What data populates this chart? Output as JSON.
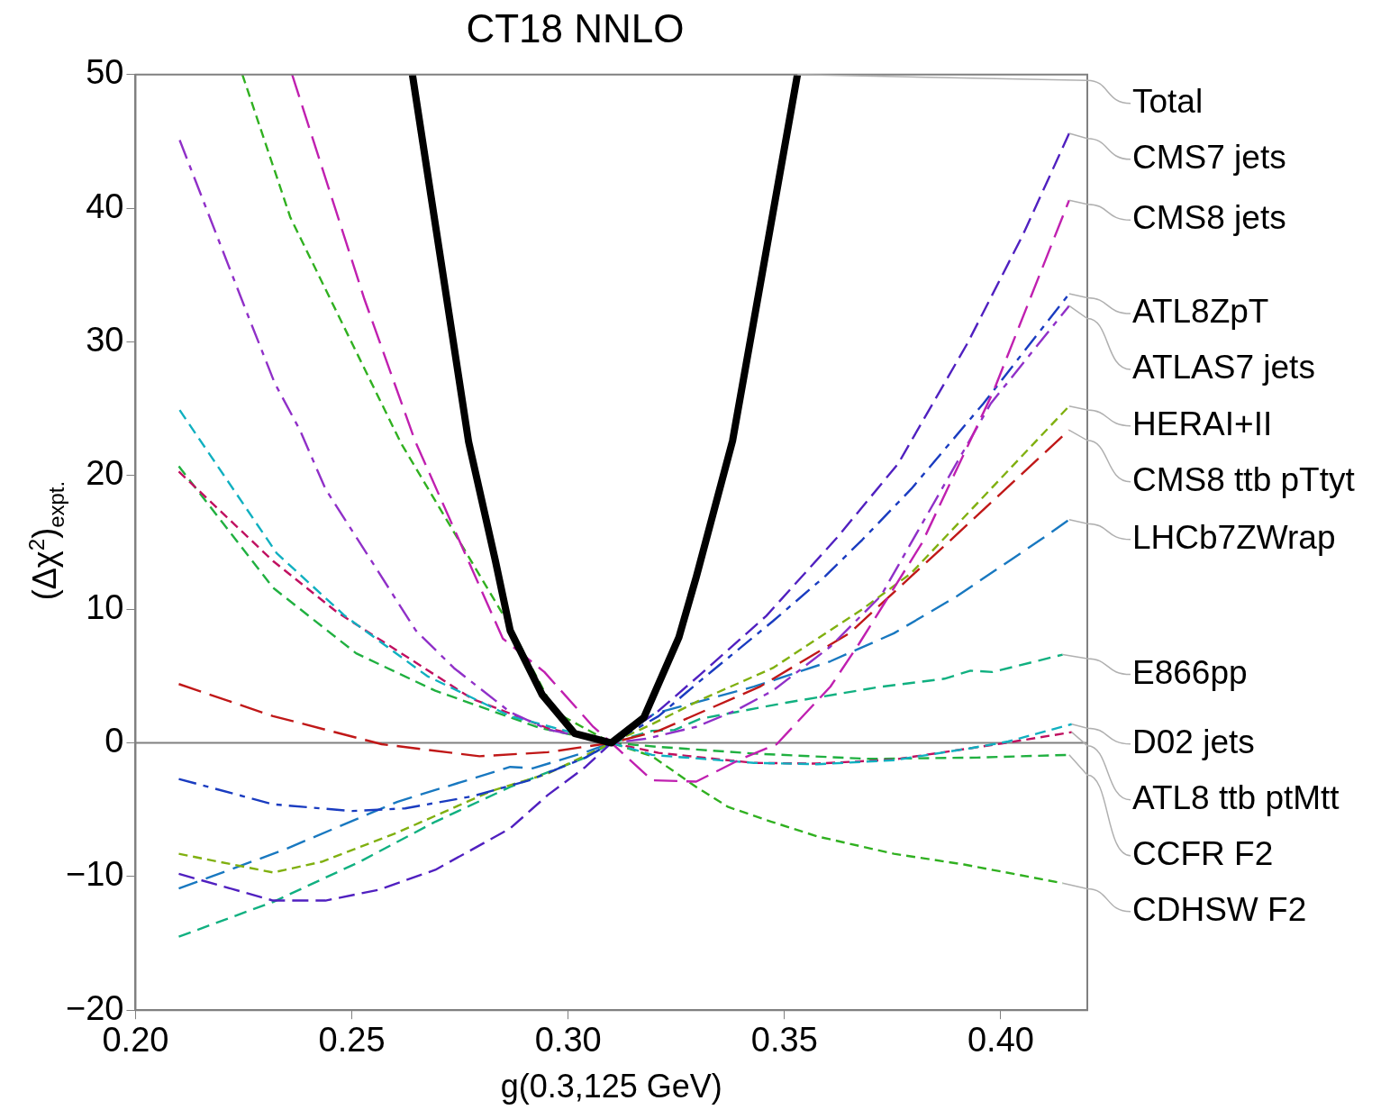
{
  "chart_data": {
    "type": "line",
    "title": "CT18 NNLO",
    "xlabel": "g(0.3,125 GeV)",
    "ylabel": "(Δχ$^{2}$)$_{expt.}$",
    "xlim": [
      0.2,
      0.42
    ],
    "ylim": [
      -20,
      50
    ],
    "xticks": [
      {
        "value": 0.2,
        "label": "0.20"
      },
      {
        "value": 0.25,
        "label": "0.25"
      },
      {
        "value": 0.3,
        "label": "0.30"
      },
      {
        "value": 0.35,
        "label": "0.35"
      },
      {
        "value": 0.4,
        "label": "0.40"
      }
    ],
    "yticks": [
      {
        "value": -20,
        "label": "−20"
      },
      {
        "value": -10,
        "label": "−10"
      },
      0,
      10,
      20,
      30,
      40,
      50
    ],
    "ref_lines": [
      {
        "axis": "y",
        "value": 0,
        "color": "#808080"
      }
    ],
    "marker": "none",
    "series": [
      {
        "name": "Total",
        "color": "#000000",
        "line_style": "solid",
        "x": [
          0.264,
          0.277,
          0.2832,
          0.2866,
          0.294,
          0.3015,
          0.31,
          0.3175,
          0.3256,
          0.3296,
          0.338,
          0.353
        ],
        "values": [
          50,
          22.5,
          13.6,
          8.4,
          3.6,
          0.7,
          0,
          1.9,
          7.9,
          12.4,
          22.6,
          50
        ]
      },
      {
        "name": "CMS7 jets",
        "color": "#5020c0",
        "line_style": "dashed",
        "x": [
          0.21,
          0.2318,
          0.2439,
          0.2561,
          0.2693,
          0.2866,
          0.2953,
          0.304,
          0.31,
          0.3209,
          0.3305,
          0.3458,
          0.362,
          0.3763,
          0.3923,
          0.4051,
          0.4158
        ],
        "values": [
          -9.8,
          -11.8,
          -11.8,
          -11.0,
          -9.5,
          -6.4,
          -3.9,
          -1.8,
          0,
          2.4,
          5.1,
          9.5,
          15.3,
          20.9,
          29.9,
          38.0,
          45.6
        ]
      },
      {
        "name": "CMS8 jets",
        "color": "#c020b0",
        "line_style": "dashed",
        "x": [
          0.2362,
          0.2529,
          0.2646,
          0.2849,
          0.2945,
          0.3058,
          0.31,
          0.3194,
          0.3296,
          0.34,
          0.3482,
          0.3606,
          0.3672,
          0.3817,
          0.3983,
          0.4158
        ],
        "values": [
          50,
          33.2,
          22.6,
          7.8,
          5.3,
          1.2,
          0,
          -2.8,
          -2.9,
          -1.2,
          -0.1,
          4.2,
          7.4,
          14.9,
          26.3,
          40.6
        ]
      },
      {
        "name": "ATL8ZpT",
        "color": "#1a3cc0",
        "line_style": "dashed",
        "x": [
          0.21,
          0.2318,
          0.2501,
          0.2623,
          0.2778,
          0.291,
          0.304,
          0.31,
          0.3209,
          0.3311,
          0.3473,
          0.3595,
          0.368,
          0.3793,
          0.396,
          0.4158
        ],
        "values": [
          -2.7,
          -4.6,
          -5.1,
          -4.9,
          -4.0,
          -2.8,
          -1.1,
          0,
          2.0,
          4.8,
          9.1,
          12.5,
          15.2,
          19.0,
          25.4,
          33.6
        ]
      },
      {
        "name": "ATLAS7 jets",
        "color": "#9030c8",
        "line_style": "dashed",
        "x": [
          0.2102,
          0.2262,
          0.2322,
          0.238,
          0.2439,
          0.2648,
          0.2736,
          0.2866,
          0.2953,
          0.31,
          0.3179,
          0.3296,
          0.3386,
          0.3473,
          0.3606,
          0.3723,
          0.3885,
          0.3977,
          0.4158
        ],
        "values": [
          45.1,
          31.8,
          26.9,
          23.4,
          19.0,
          8.4,
          5.6,
          2.3,
          1.0,
          0,
          0.3,
          1.2,
          2.4,
          3.9,
          7.2,
          11.0,
          20.2,
          25.4,
          32.7
        ]
      },
      {
        "name": "HERAI+II",
        "color": "#80b010",
        "line_style": "dashed",
        "x": [
          0.21,
          0.2318,
          0.243,
          0.2606,
          0.2823,
          0.2953,
          0.31,
          0.3194,
          0.3305,
          0.3473,
          0.368,
          0.3793,
          0.3977,
          0.4158
        ],
        "values": [
          -8.3,
          -9.7,
          -8.9,
          -6.7,
          -3.6,
          -2.3,
          0,
          1.4,
          3.2,
          5.6,
          10.0,
          12.7,
          19.0,
          25.2
        ]
      },
      {
        "name": "CMS8 ttb pTtyt",
        "color": "#c01818",
        "line_style": "dashed",
        "x": [
          0.21,
          0.2318,
          0.2569,
          0.2795,
          0.2953,
          0.31,
          0.3209,
          0.3443,
          0.365,
          0.3885,
          0.4158
        ],
        "values": [
          4.4,
          2.0,
          -0.1,
          -1.0,
          -0.7,
          0,
          0.9,
          4.2,
          8.2,
          15.2,
          23.4
        ]
      },
      {
        "name": "LHCb7ZWrap",
        "color": "#1878c0",
        "line_style": "dashed",
        "x": [
          0.21,
          0.2343,
          0.2606,
          0.2866,
          0.2919,
          0.304,
          0.31,
          0.32,
          0.3281,
          0.3429,
          0.3606,
          0.3753,
          0.39,
          0.4092,
          0.4158
        ],
        "values": [
          -10.9,
          -8.0,
          -4.4,
          -1.8,
          -1.9,
          -0.7,
          0,
          2.2,
          2.9,
          4.2,
          6.1,
          8.2,
          11.0,
          15.2,
          16.7
        ]
      },
      {
        "name": "E866pp",
        "color": "#10b080",
        "line_style": "dashed",
        "x": [
          0.21,
          0.2318,
          0.2518,
          0.2693,
          0.2866,
          0.304,
          0.31,
          0.3194,
          0.3245,
          0.3305,
          0.3503,
          0.3723,
          0.387,
          0.393,
          0.3981,
          0.4143
        ],
        "values": [
          -14.5,
          -11.9,
          -8.9,
          -5.9,
          -3.3,
          -1.1,
          0,
          0.9,
          0.95,
          1.8,
          3.0,
          4.2,
          4.8,
          5.4,
          5.3,
          6.6
        ]
      },
      {
        "name": "D02 jets",
        "color": "#10b0c0",
        "line_style": "dashed",
        "x": [
          0.2102,
          0.2326,
          0.2484,
          0.2674,
          0.2866,
          0.31,
          0.3194,
          0.3429,
          0.3576,
          0.3753,
          0.393,
          0.4017,
          0.4164
        ],
        "values": [
          24.9,
          14.2,
          9.5,
          5.0,
          2.0,
          0,
          -0.9,
          -1.5,
          -1.6,
          -1.3,
          -0.4,
          0.1,
          1.4
        ]
      },
      {
        "name": "ATL8 ttb ptMtt",
        "color": "#c01060",
        "line_style": "dashed",
        "x": [
          0.21,
          0.2318,
          0.2465,
          0.2778,
          0.2953,
          0.31,
          0.3209,
          0.3429,
          0.3576,
          0.3753,
          0.393,
          0.4002,
          0.4164
        ],
        "values": [
          20.3,
          13.6,
          9.8,
          3.3,
          1.1,
          0,
          -0.75,
          -1.5,
          -1.55,
          -1.25,
          -0.4,
          -0.05,
          0.8
        ]
      },
      {
        "name": "CCFR F2",
        "color": "#20b040",
        "line_style": "dashed",
        "x": [
          0.21,
          0.2318,
          0.251,
          0.2693,
          0.2936,
          0.31,
          0.3209,
          0.3429,
          0.3695,
          0.3945,
          0.4158
        ],
        "values": [
          20.7,
          11.6,
          6.7,
          3.9,
          1.1,
          0,
          -0.3,
          -0.8,
          -1.2,
          -1.1,
          -0.9
        ]
      },
      {
        "name": "CDHSW F2",
        "color": "#30b020",
        "line_style": "dashed",
        "x": [
          0.2247,
          0.2358,
          0.2614,
          0.2866,
          0.297,
          0.31,
          0.3194,
          0.3296,
          0.337,
          0.347,
          0.3576,
          0.3753,
          0.3915,
          0.4143
        ],
        "values": [
          50,
          39.3,
          22.4,
          8.7,
          2.3,
          0,
          -1.0,
          -3.3,
          -4.8,
          -5.9,
          -7.0,
          -8.3,
          -9.1,
          -10.5
        ]
      }
    ]
  }
}
